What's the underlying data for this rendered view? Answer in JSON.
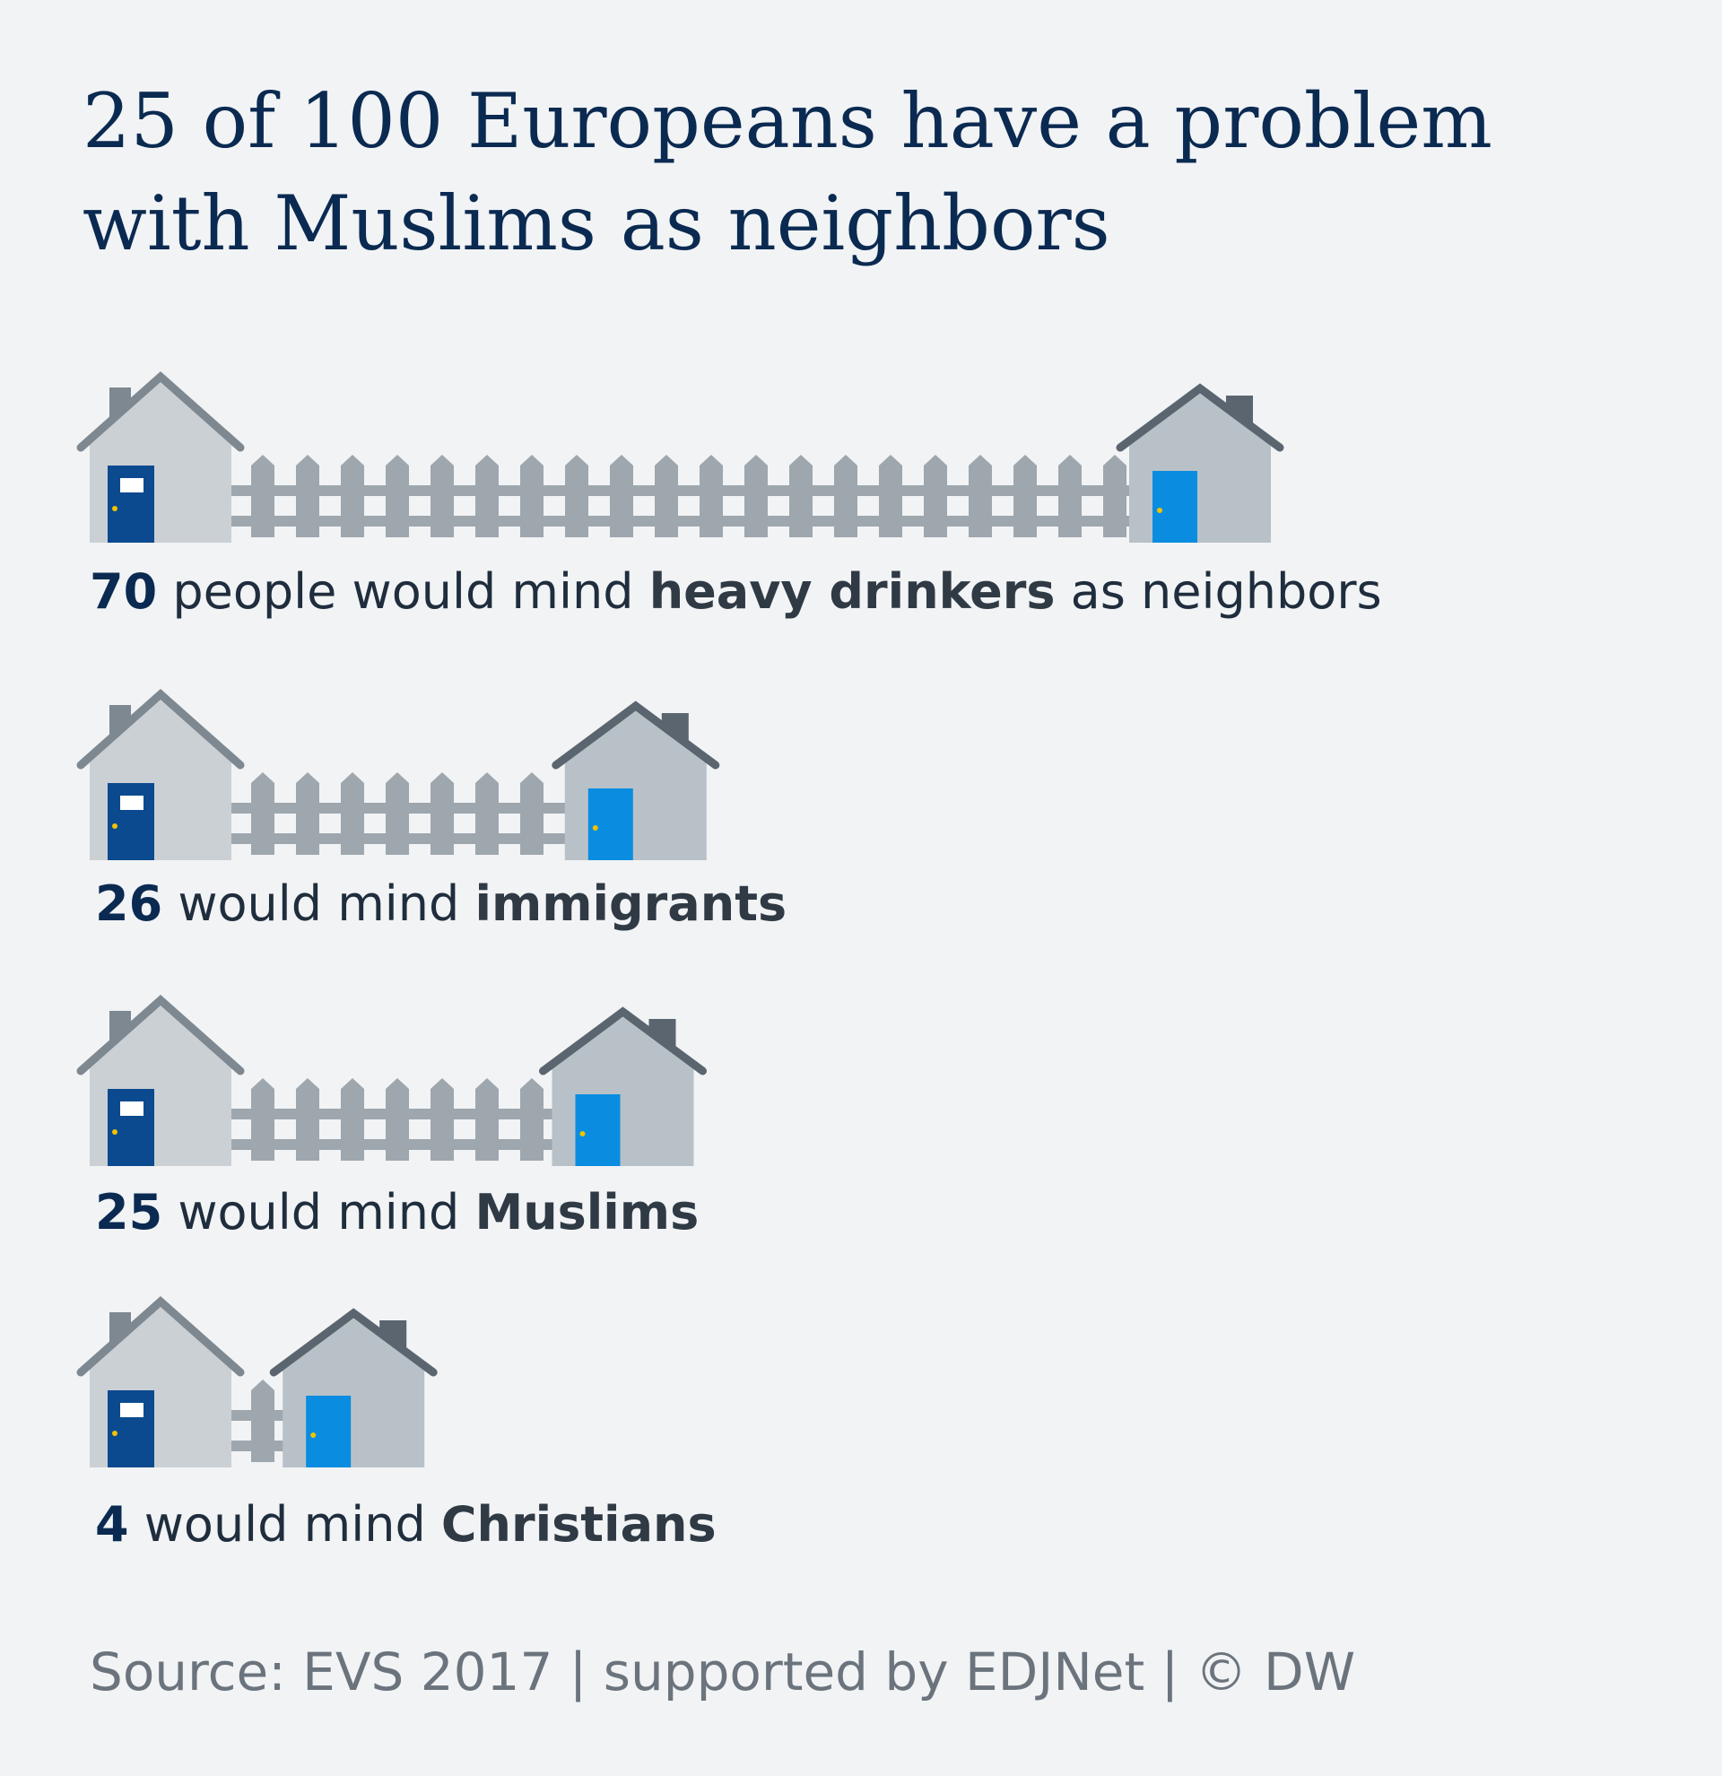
{
  "title": "25 of 100 Europeans have a problem with Muslims as neighbors",
  "source": "Source: EVS 2017 | supported by EDJNet | © DW",
  "colors": {
    "background": "#f1f3f5",
    "title": "#0b2a51",
    "fence": "#9ea7ae",
    "house_left_wall": "#cbd0d5",
    "house_right_wall": "#b9c1c8",
    "roof_left": "#7e8891",
    "roof_right": "#5a656f",
    "door_left": "#0b4a8f",
    "door_right": "#0a8de0"
  },
  "chart_data": {
    "type": "bar",
    "title": "25 of 100 Europeans have a problem with Muslims as neighbors",
    "unit": "people of 100",
    "max": 100,
    "categories": [
      "heavy drinkers",
      "immigrants",
      "Muslims",
      "Christians"
    ],
    "values": [
      70,
      26,
      25,
      4
    ],
    "labels": [
      {
        "num": "70",
        "mid": " people would mind ",
        "target": "heavy drinkers",
        "tail": " as neighbors"
      },
      {
        "num": "26",
        "mid": " would mind ",
        "target": "immigrants",
        "tail": ""
      },
      {
        "num": "25",
        "mid": " would mind ",
        "target": "Muslims",
        "tail": ""
      },
      {
        "num": "4",
        "mid": " would mind ",
        "target": "Christians",
        "tail": ""
      }
    ]
  }
}
